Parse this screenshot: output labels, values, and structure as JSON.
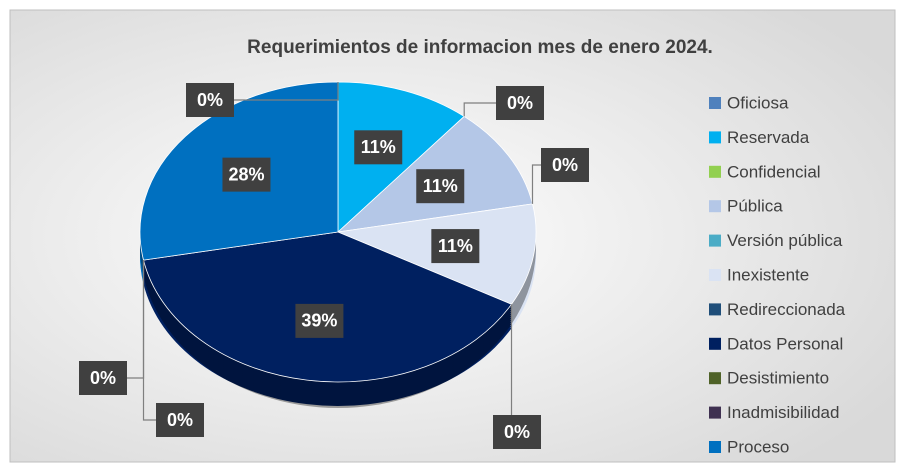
{
  "chart_data": {
    "type": "pie",
    "title": "Requerimientos de informacion mes de enero 2024.",
    "categories": [
      "Oficiosa",
      "Reservada",
      "Confidencial",
      "Pública",
      "Versión pública",
      "Inexistente",
      "Redireccionada",
      "Datos Personal",
      "Desistimiento",
      "Inadmisibilidad",
      "Proceso"
    ],
    "values": [
      0,
      11,
      0,
      11,
      0,
      11,
      0,
      39,
      0,
      0,
      28
    ],
    "value_labels": [
      "0%",
      "11%",
      "0%",
      "11%",
      "0%",
      "11%",
      "0%",
      "39%",
      "0%",
      "0%",
      "28%"
    ],
    "colors": [
      "#4f81bd",
      "#00b0f0",
      "#92d050",
      "#b4c7e7",
      "#4bacc6",
      "#dae3f3",
      "#1f4e79",
      "#002060",
      "#4f6228",
      "#3f3151",
      "#0070c0"
    ],
    "legend": "right"
  }
}
